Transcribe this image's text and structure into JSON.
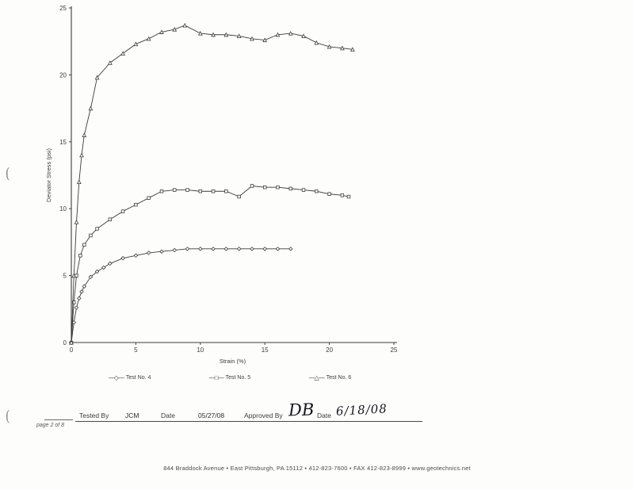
{
  "page": {
    "page_label": "page 2 of 8",
    "footer": "844 Braddock Avenue  •  East Pittsburgh, PA 15112  •  412-823-7600  •  FAX 412-823-8999  •  www.geotechnics.net"
  },
  "signature": {
    "tested_by_label": "Tested By",
    "tested_by_value": "JCM",
    "date_label_1": "Date",
    "date_value_1": "05/27/08",
    "approved_by_label": "Approved By",
    "approved_by_value": "DB",
    "date_label_2": "Date",
    "date_value_2": "6/18/08"
  },
  "chart_data": {
    "type": "line",
    "title": "",
    "xlabel": "Strain (%)",
    "ylabel": "Deviator Stress (psi)",
    "xlim": [
      0,
      25
    ],
    "ylim": [
      0,
      25
    ],
    "x_ticks": [
      0,
      5,
      10,
      15,
      20,
      25
    ],
    "y_ticks": [
      0,
      5,
      10,
      15,
      20,
      25
    ],
    "grid": false,
    "legend_position": "bottom",
    "series": [
      {
        "name": "Test No. 4",
        "marker": "diamond",
        "legend_glyph": "—◇—",
        "points": [
          [
            0,
            0
          ],
          [
            0.2,
            1.5
          ],
          [
            0.4,
            2.6
          ],
          [
            0.6,
            3.3
          ],
          [
            0.8,
            3.8
          ],
          [
            1,
            4.2
          ],
          [
            1.5,
            4.9
          ],
          [
            2,
            5.3
          ],
          [
            2.5,
            5.6
          ],
          [
            3,
            5.9
          ],
          [
            4,
            6.3
          ],
          [
            5,
            6.5
          ],
          [
            6,
            6.7
          ],
          [
            7,
            6.8
          ],
          [
            8,
            6.9
          ],
          [
            9,
            7.0
          ],
          [
            10,
            7.0
          ],
          [
            11,
            7.0
          ],
          [
            12,
            7.0
          ],
          [
            13,
            7.0
          ],
          [
            14,
            7.0
          ],
          [
            15,
            7.0
          ],
          [
            16,
            7.0
          ],
          [
            17,
            7.0
          ]
        ]
      },
      {
        "name": "Test No. 5",
        "marker": "square",
        "legend_glyph": "—□—",
        "points": [
          [
            0,
            0
          ],
          [
            0.2,
            3.0
          ],
          [
            0.4,
            5.0
          ],
          [
            0.7,
            6.5
          ],
          [
            1,
            7.3
          ],
          [
            1.5,
            8.0
          ],
          [
            2,
            8.5
          ],
          [
            3,
            9.2
          ],
          [
            4,
            9.8
          ],
          [
            5,
            10.3
          ],
          [
            6,
            10.8
          ],
          [
            7,
            11.3
          ],
          [
            8,
            11.4
          ],
          [
            9,
            11.4
          ],
          [
            10,
            11.3
          ],
          [
            11,
            11.3
          ],
          [
            12,
            11.3
          ],
          [
            13,
            10.9
          ],
          [
            14,
            11.7
          ],
          [
            15,
            11.6
          ],
          [
            16,
            11.6
          ],
          [
            17,
            11.5
          ],
          [
            18,
            11.4
          ],
          [
            19,
            11.3
          ],
          [
            20,
            11.1
          ],
          [
            21,
            11.0
          ],
          [
            21.5,
            10.9
          ]
        ]
      },
      {
        "name": "Test No. 6",
        "marker": "triangle",
        "legend_glyph": "—△—",
        "points": [
          [
            0,
            0
          ],
          [
            0.2,
            5
          ],
          [
            0.4,
            9
          ],
          [
            0.6,
            12
          ],
          [
            0.8,
            14
          ],
          [
            1,
            15.5
          ],
          [
            1.5,
            17.5
          ],
          [
            2,
            19.8
          ],
          [
            3,
            20.9
          ],
          [
            4,
            21.6
          ],
          [
            5,
            22.3
          ],
          [
            6,
            22.7
          ],
          [
            7,
            23.2
          ],
          [
            8,
            23.4
          ],
          [
            8.8,
            23.7
          ],
          [
            10,
            23.1
          ],
          [
            11,
            23.0
          ],
          [
            12,
            23.0
          ],
          [
            13,
            22.9
          ],
          [
            14,
            22.7
          ],
          [
            15,
            22.6
          ],
          [
            16,
            23.0
          ],
          [
            17,
            23.1
          ],
          [
            18,
            22.9
          ],
          [
            19,
            22.4
          ],
          [
            20,
            22.1
          ],
          [
            21,
            22.0
          ],
          [
            21.8,
            21.9
          ]
        ]
      }
    ]
  }
}
